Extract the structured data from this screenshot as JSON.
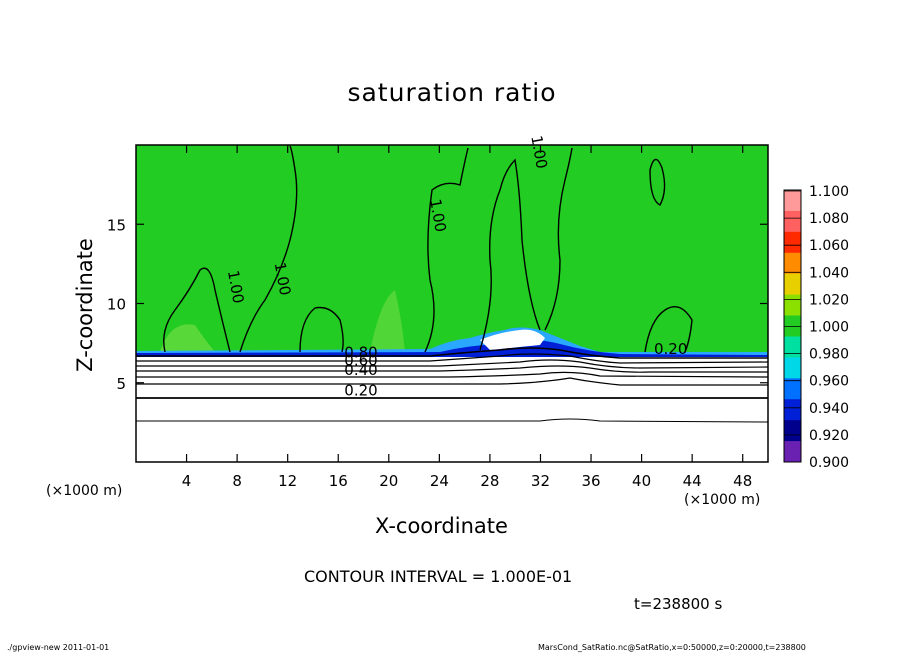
{
  "chart_data": {
    "type": "heatmap",
    "title": "saturation ratio",
    "xlabel": "X-coordinate",
    "ylabel": "Z-coordinate",
    "x_unit": "(×1000 m)",
    "y_unit": "(×1000 m)",
    "xlim": [
      0,
      50
    ],
    "ylim": [
      0,
      20
    ],
    "x_ticks": [
      4,
      8,
      12,
      16,
      20,
      24,
      28,
      32,
      36,
      40,
      44,
      48
    ],
    "y_ticks": [
      5,
      10,
      15
    ],
    "colorbar": {
      "levels": [
        "1.100",
        "1.080",
        "1.060",
        "1.040",
        "1.020",
        "1.000",
        "0.980",
        "0.960",
        "0.940",
        "0.920",
        "0.900"
      ],
      "colors": [
        "#ff9a9a",
        "#ff6060",
        "#ff2a00",
        "#ff8c00",
        "#e8d000",
        "#8ce000",
        "#22cc22",
        "#00e0a0",
        "#00d8e8",
        "#0070ff",
        "#0020d8",
        "#00008c",
        "#6a20b0"
      ]
    },
    "contour_labels": [
      {
        "text": "1.00",
        "x": 7.5,
        "z": 11
      },
      {
        "text": "1.00",
        "x": 11.2,
        "z": 11.5
      },
      {
        "text": "1.00",
        "x": 23.5,
        "z": 15.5
      },
      {
        "text": "1.00",
        "x": 31.5,
        "z": 19.5
      },
      {
        "text": "0.80",
        "x": 17.8,
        "z": 6.6
      },
      {
        "text": "0.60",
        "x": 17.8,
        "z": 6.1
      },
      {
        "text": "0.40",
        "x": 17.8,
        "z": 5.5
      },
      {
        "text": "0.20",
        "x": 17.8,
        "z": 4.2
      },
      {
        "text": "0.20",
        "x": 42.3,
        "z": 6.8
      }
    ],
    "contour_interval_text": "CONTOUR INTERVAL = 1.000E-01",
    "time_text": "t=238800 s"
  },
  "colors": {
    "saturated": "#22cc22",
    "dry": "#ffffff"
  },
  "footer": {
    "left": "./gpview-new   2011-01-01",
    "right": "MarsCond_SatRatio.nc@SatRatio,x=0:50000,z=0:20000,t=238800"
  }
}
